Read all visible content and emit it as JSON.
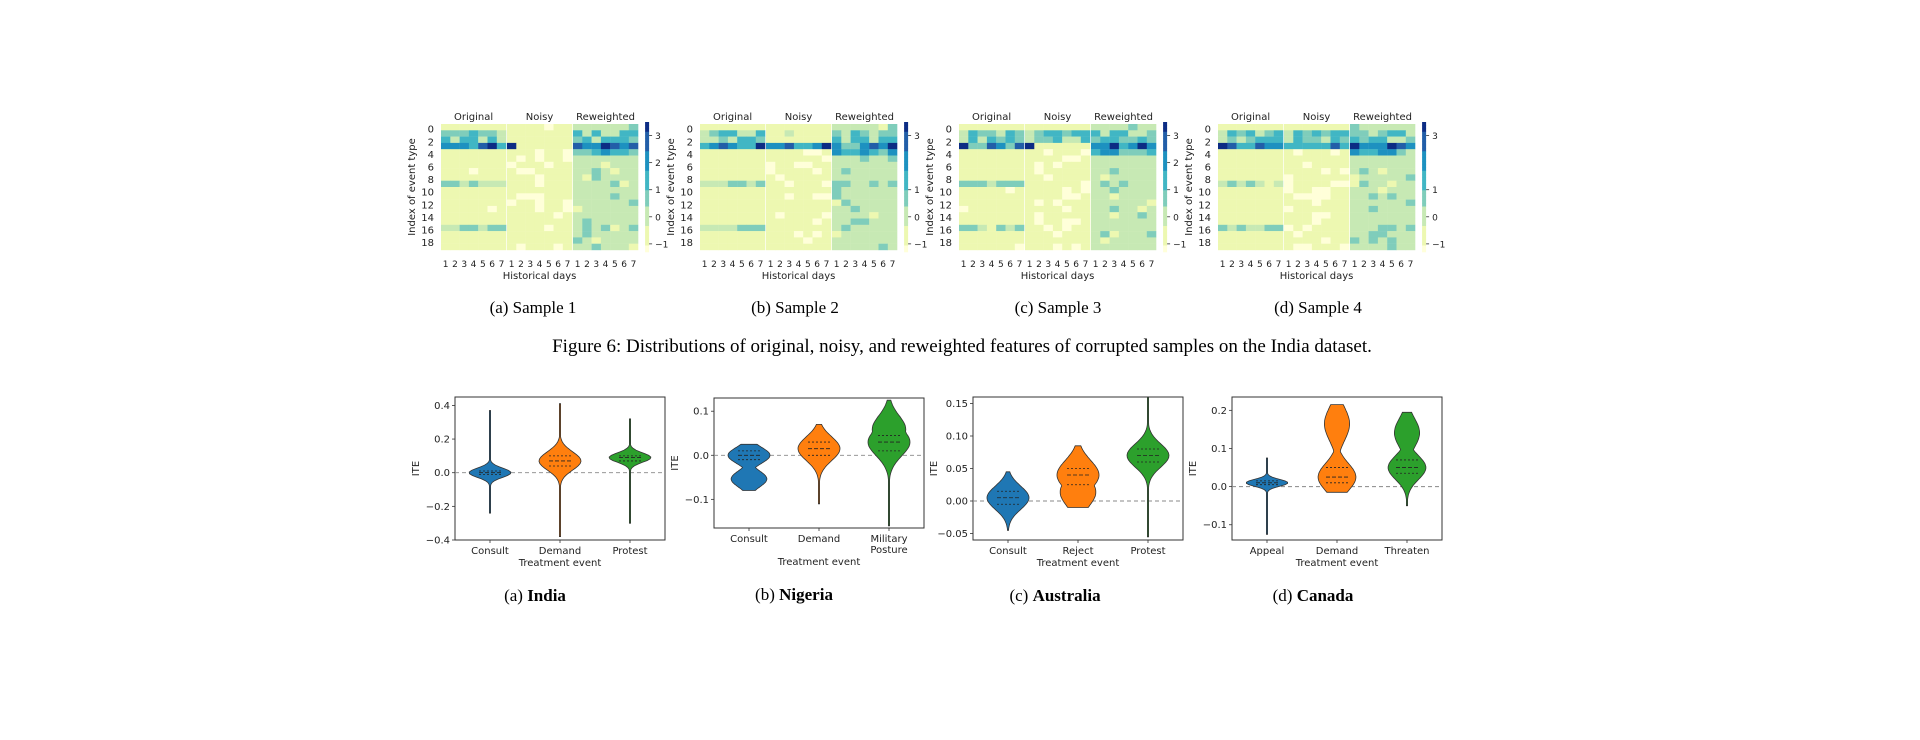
{
  "figure6": {
    "caption": "Figure 6: Distributions of original, noisy, and reweighted features of corrupted samples on the India dataset.",
    "panel_titles": [
      "Original",
      "Noisy",
      "Reweighted"
    ],
    "ylabel": "Index of event type",
    "xlabel": "Historical days",
    "yticks": [
      "0",
      "2",
      "4",
      "6",
      "8",
      "10",
      "12",
      "14",
      "16",
      "18"
    ],
    "xticks": [
      "1",
      "2",
      "3",
      "4",
      "5",
      "6",
      "7"
    ],
    "colorscale": [
      "#ffffd9",
      "#edf8b1",
      "#c7e9b4",
      "#7fcdbb",
      "#41b6c4",
      "#1d91c0",
      "#225ea8",
      "#0c2c84"
    ],
    "subcaptions": [
      "(a) Sample 1",
      "(b) Sample 2",
      "(c) Sample 3",
      "(d) Sample 4"
    ]
  },
  "chart_data": [
    {
      "type": "heatmap",
      "title": "(a) Sample 1",
      "panels": [
        "Original",
        "Noisy",
        "Reweighted"
      ],
      "rows": 20,
      "cols": 7,
      "colorbar_ticks": [
        "3",
        "2",
        "1",
        "0",
        "−1"
      ],
      "colorbar_range": [
        -1.3,
        3.5
      ]
    },
    {
      "type": "heatmap",
      "title": "(b) Sample 2",
      "panels": [
        "Original",
        "Noisy",
        "Reweighted"
      ],
      "rows": 20,
      "cols": 7,
      "colorbar_ticks": [
        "3",
        "1",
        "0",
        "−1"
      ],
      "colorbar_range": [
        -1.3,
        3.5
      ]
    },
    {
      "type": "heatmap",
      "title": "(c) Sample 3",
      "panels": [
        "Original",
        "Noisy",
        "Reweighted"
      ],
      "rows": 20,
      "cols": 7,
      "colorbar_ticks": [
        "3",
        "2",
        "1",
        "0",
        "−1"
      ],
      "colorbar_range": [
        -1.3,
        3.5
      ]
    },
    {
      "type": "heatmap",
      "title": "(d) Sample 4",
      "panels": [
        "Original",
        "Noisy",
        "Reweighted"
      ],
      "rows": 20,
      "cols": 7,
      "colorbar_ticks": [
        "3",
        "1",
        "0",
        "−1"
      ],
      "colorbar_range": [
        -1.3,
        3.5
      ]
    },
    {
      "type": "violin",
      "subcaption_prefix": "(a)",
      "subcaption_bold": "India",
      "ylabel": "ITE",
      "xlabel": "Treatment event",
      "categories": [
        "Consult",
        "Demand",
        "Protest"
      ],
      "ylim": [
        -0.4,
        0.45
      ],
      "yticks": [
        -0.4,
        -0.2,
        0.0,
        0.2,
        0.4
      ],
      "ytick_labels": [
        "−0.4",
        "−0.2",
        "0.0",
        "0.2",
        "0.4"
      ],
      "reference_line": 0,
      "colors": [
        "#1f77b4",
        "#ff7f0e",
        "#2ca02c"
      ],
      "distributions": [
        {
          "min": -0.24,
          "max": 0.37,
          "median": 0.0,
          "q1": -0.01,
          "q3": 0.01
        },
        {
          "min": -0.38,
          "max": 0.41,
          "median": 0.07,
          "q1": 0.04,
          "q3": 0.1
        },
        {
          "min": -0.3,
          "max": 0.32,
          "median": 0.09,
          "q1": 0.07,
          "q3": 0.1
        }
      ]
    },
    {
      "type": "violin",
      "subcaption_prefix": "(b)",
      "subcaption_bold": "Nigeria",
      "ylabel": "ITE",
      "xlabel": "Treatment event",
      "categories": [
        "Consult",
        "Demand",
        "Military\nPosture"
      ],
      "ylim": [
        -0.165,
        0.13
      ],
      "yticks": [
        -0.1,
        0.0,
        0.1
      ],
      "ytick_labels": [
        "−0.1",
        "0.0",
        "0.1"
      ],
      "reference_line": 0,
      "colors": [
        "#1f77b4",
        "#ff7f0e",
        "#2ca02c"
      ],
      "distributions": [
        {
          "min": -0.08,
          "max": 0.025,
          "median": 0.0,
          "q1": -0.01,
          "q3": 0.01
        },
        {
          "min": -0.11,
          "max": 0.07,
          "median": 0.015,
          "q1": 0.0,
          "q3": 0.03
        },
        {
          "min": -0.16,
          "max": 0.125,
          "median": 0.03,
          "q1": 0.01,
          "q3": 0.045
        }
      ]
    },
    {
      "type": "violin",
      "subcaption_prefix": "(c)",
      "subcaption_bold": "Australia",
      "ylabel": "ITE",
      "xlabel": "Treatment event",
      "categories": [
        "Consult",
        "Reject",
        "Protest"
      ],
      "ylim": [
        -0.06,
        0.16
      ],
      "yticks": [
        -0.05,
        0.0,
        0.05,
        0.1,
        0.15
      ],
      "ytick_labels": [
        "−0.05",
        "0.00",
        "0.05",
        "0.10",
        "0.15"
      ],
      "reference_line": 0,
      "colors": [
        "#1f77b4",
        "#ff7f0e",
        "#2ca02c"
      ],
      "distributions": [
        {
          "min": -0.045,
          "max": 0.045,
          "median": 0.005,
          "q1": -0.005,
          "q3": 0.015
        },
        {
          "min": -0.01,
          "max": 0.085,
          "median": 0.04,
          "q1": 0.025,
          "q3": 0.05
        },
        {
          "min": -0.055,
          "max": 0.16,
          "median": 0.07,
          "q1": 0.06,
          "q3": 0.08
        }
      ]
    },
    {
      "type": "violin",
      "subcaption_prefix": "(d)",
      "subcaption_bold": "Canada",
      "ylabel": "ITE",
      "xlabel": "Treatment event",
      "categories": [
        "Appeal",
        "Demand",
        "Threaten"
      ],
      "ylim": [
        -0.14,
        0.235
      ],
      "yticks": [
        -0.1,
        0.0,
        0.1,
        0.2
      ],
      "ytick_labels": [
        "−0.1",
        "0.0",
        "0.1",
        "0.2"
      ],
      "reference_line": 0,
      "colors": [
        "#1f77b4",
        "#ff7f0e",
        "#2ca02c"
      ],
      "distributions": [
        {
          "min": -0.125,
          "max": 0.075,
          "median": 0.01,
          "q1": 0.005,
          "q3": 0.015
        },
        {
          "min": -0.015,
          "max": 0.215,
          "median": 0.025,
          "q1": 0.01,
          "q3": 0.05
        },
        {
          "min": -0.05,
          "max": 0.195,
          "median": 0.05,
          "q1": 0.035,
          "q3": 0.07
        }
      ]
    }
  ]
}
